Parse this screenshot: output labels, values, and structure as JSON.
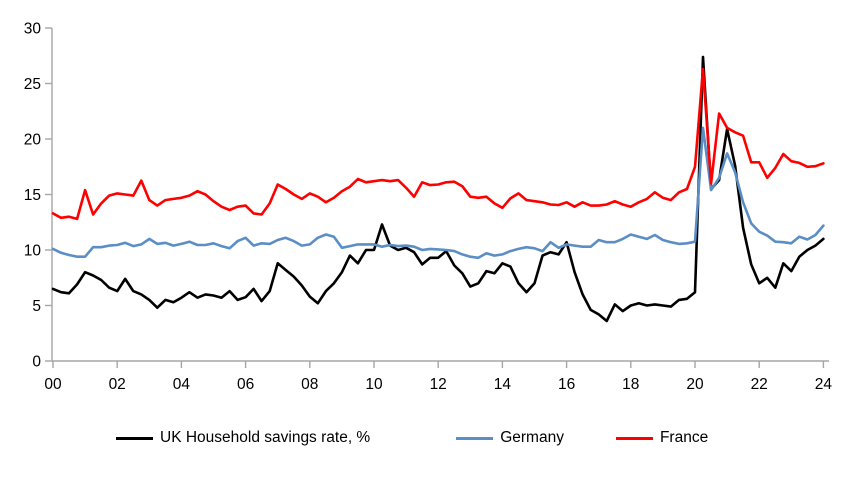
{
  "chart_data": {
    "type": "line",
    "title": "",
    "xlabel": "",
    "ylabel": "",
    "x_start_year": 2000,
    "x_step_years": 0.25,
    "x_tick_years": [
      0,
      2,
      4,
      6,
      8,
      10,
      12,
      14,
      16,
      18,
      20,
      22,
      24
    ],
    "x_tick_labels": [
      "00",
      "02",
      "04",
      "06",
      "08",
      "10",
      "12",
      "14",
      "16",
      "18",
      "20",
      "22",
      "24"
    ],
    "ylim": [
      0,
      30
    ],
    "y_ticks": [
      0,
      5,
      10,
      15,
      20,
      25,
      30
    ],
    "grid": false,
    "legend_position": "bottom",
    "axis_color": "#a6a6a6",
    "text_color": "#000000",
    "background_color": "#ffffff",
    "series": [
      {
        "name": "UK Household savings rate, %",
        "color": "#000000",
        "values": [
          6.5,
          6.2,
          6.1,
          6.9,
          8.0,
          7.7,
          7.3,
          6.6,
          6.3,
          7.4,
          6.3,
          6.0,
          5.5,
          4.8,
          5.5,
          5.3,
          5.7,
          6.2,
          5.7,
          6.0,
          5.9,
          5.7,
          6.3,
          5.5,
          5.75,
          6.5,
          5.4,
          6.3,
          8.8,
          8.2,
          7.6,
          6.8,
          5.8,
          5.2,
          6.3,
          7.0,
          8.0,
          9.5,
          8.8,
          10.0,
          10.0,
          12.3,
          10.4,
          10.0,
          10.2,
          9.8,
          8.7,
          9.3,
          9.3,
          9.9,
          8.6,
          7.9,
          6.7,
          7.0,
          8.1,
          7.9,
          8.8,
          8.5,
          7.0,
          6.2,
          7.0,
          9.5,
          9.8,
          9.6,
          10.7,
          8.0,
          6.0,
          4.6,
          4.2,
          3.6,
          5.1,
          4.5,
          5.0,
          5.2,
          5.0,
          5.1,
          5.0,
          4.9,
          5.5,
          5.6,
          6.2,
          27.4,
          15.5,
          16.3,
          20.9,
          17.6,
          12.0,
          8.7,
          7.0,
          7.5,
          6.6,
          8.8,
          8.1,
          9.4,
          10.0,
          10.4,
          11.0
        ]
      },
      {
        "name": "Germany",
        "color": "#5b8ec4",
        "values": [
          10.1,
          9.75,
          9.55,
          9.4,
          9.4,
          10.25,
          10.25,
          10.4,
          10.45,
          10.65,
          10.35,
          10.5,
          11.0,
          10.55,
          10.65,
          10.4,
          10.55,
          10.75,
          10.45,
          10.45,
          10.6,
          10.35,
          10.15,
          10.8,
          11.1,
          10.4,
          10.6,
          10.55,
          10.9,
          11.1,
          10.8,
          10.4,
          10.5,
          11.1,
          11.4,
          11.2,
          10.2,
          10.35,
          10.5,
          10.5,
          10.5,
          10.3,
          10.45,
          10.35,
          10.4,
          10.3,
          10.0,
          10.1,
          10.05,
          10.0,
          9.9,
          9.6,
          9.4,
          9.3,
          9.7,
          9.5,
          9.6,
          9.9,
          10.1,
          10.25,
          10.15,
          9.9,
          10.7,
          10.2,
          10.5,
          10.4,
          10.3,
          10.3,
          10.9,
          10.7,
          10.7,
          11.0,
          11.4,
          11.2,
          11.0,
          11.35,
          10.9,
          10.7,
          10.55,
          10.6,
          10.75,
          21.0,
          15.4,
          16.5,
          18.7,
          17.0,
          14.3,
          12.4,
          11.65,
          11.3,
          10.75,
          10.7,
          10.6,
          11.2,
          10.95,
          11.35,
          12.2
        ]
      },
      {
        "name": "France",
        "color": "#ff0000",
        "values": [
          13.3,
          12.9,
          13.0,
          12.8,
          15.4,
          13.2,
          14.2,
          14.9,
          15.1,
          15.0,
          14.9,
          16.25,
          14.5,
          14.0,
          14.5,
          14.6,
          14.7,
          14.9,
          15.3,
          15.0,
          14.4,
          13.9,
          13.6,
          13.9,
          14.0,
          13.3,
          13.2,
          14.2,
          15.9,
          15.5,
          15.0,
          14.6,
          15.1,
          14.8,
          14.3,
          14.7,
          15.3,
          15.7,
          16.4,
          16.1,
          16.2,
          16.3,
          16.2,
          16.3,
          15.6,
          14.8,
          16.1,
          15.85,
          15.9,
          16.1,
          16.15,
          15.75,
          14.8,
          14.7,
          14.8,
          14.2,
          13.8,
          14.65,
          15.1,
          14.5,
          14.4,
          14.3,
          14.1,
          14.05,
          14.3,
          13.9,
          14.3,
          14.0,
          14.0,
          14.1,
          14.4,
          14.1,
          13.9,
          14.3,
          14.6,
          15.2,
          14.7,
          14.5,
          15.2,
          15.5,
          17.5,
          26.3,
          16.0,
          22.3,
          21.0,
          20.6,
          20.3,
          17.9,
          17.9,
          16.5,
          17.4,
          18.65,
          18.0,
          17.85,
          17.5,
          17.55,
          17.8
        ]
      }
    ]
  }
}
